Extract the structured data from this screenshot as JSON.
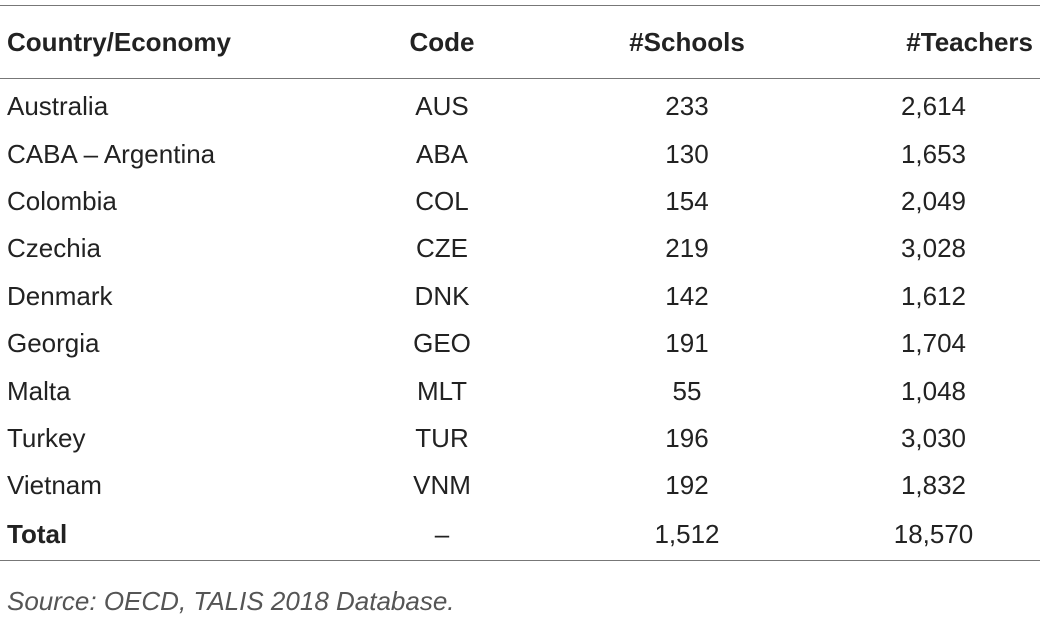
{
  "table": {
    "header": [
      "Country/Economy",
      "Code",
      "#Schools",
      "#Teachers"
    ],
    "rows": [
      [
        "Australia",
        "AUS",
        "233",
        "2,614"
      ],
      [
        "CABA – Argentina",
        "ABA",
        "130",
        "1,653"
      ],
      [
        "Colombia",
        "COL",
        "154",
        "2,049"
      ],
      [
        "Czechia",
        "CZE",
        "219",
        "3,028"
      ],
      [
        "Denmark",
        "DNK",
        "142",
        "1,612"
      ],
      [
        "Georgia",
        "GEO",
        "191",
        "1,704"
      ],
      [
        "Malta",
        "MLT",
        "55",
        "1,048"
      ],
      [
        "Turkey",
        "TUR",
        "196",
        "3,030"
      ],
      [
        "Vietnam",
        "VNM",
        "192",
        "1,832"
      ]
    ],
    "total": [
      "Total",
      "–",
      "1,512",
      "18,570"
    ]
  },
  "source": "Source: OECD, TALIS 2018 Database."
}
